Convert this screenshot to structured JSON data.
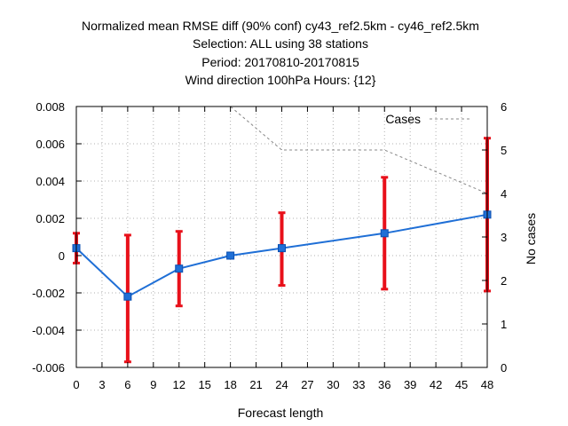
{
  "chart_data": {
    "type": "line",
    "title_lines": [
      "Normalized mean RMSE diff (90% conf) cy43_ref2.5km - cy46_ref2.5km",
      "Selection: ALL using    38 stations",
      "Period: 20170810-20170815",
      "Wind direction 100hPa  Hours: {12}"
    ],
    "xlabel": "Forecast length",
    "ylabel": "",
    "y2label": "No cases",
    "xlim": [
      0,
      48
    ],
    "ylim": [
      -0.006,
      0.008
    ],
    "y2lim": [
      0,
      6
    ],
    "x_ticks": [
      "0",
      "3",
      "6",
      "9",
      "12",
      "15",
      "18",
      "21",
      "24",
      "27",
      "30",
      "33",
      "36",
      "39",
      "42",
      "45",
      "48"
    ],
    "y_ticks": [
      "-0.006",
      "-0.004",
      "-0.002",
      "0",
      "0.002",
      "0.004",
      "0.006",
      "0.008"
    ],
    "y2_ticks": [
      "0",
      "1",
      "2",
      "3",
      "4",
      "5",
      "6"
    ],
    "grid": true,
    "legend_position": "top-right",
    "series": [
      {
        "name": "",
        "color": "#1f6fd6",
        "x": [
          0,
          6,
          12,
          18,
          24,
          36,
          48
        ],
        "y": [
          0.0004,
          -0.0022,
          -0.0007,
          0.0,
          0.0004,
          0.0012,
          0.0022
        ],
        "err_low": [
          -0.0004,
          -0.0057,
          -0.0027,
          -0.0001,
          -0.0016,
          -0.0018,
          -0.0019
        ],
        "err_high": [
          0.0012,
          0.0011,
          0.0013,
          0.0001,
          0.0023,
          0.0042,
          0.0063
        ],
        "error_color": "#e8101a"
      },
      {
        "name": "Cases",
        "axis": "y2",
        "color": "#888888",
        "x": [
          0,
          6,
          12,
          18,
          24,
          36,
          48
        ],
        "y": [
          6,
          6,
          6,
          6,
          5,
          5,
          4
        ]
      }
    ]
  }
}
